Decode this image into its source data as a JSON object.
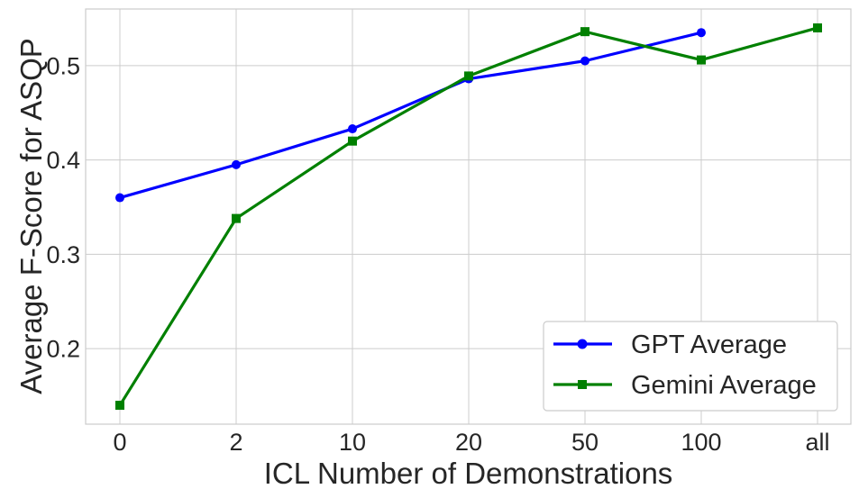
{
  "chart_data": {
    "type": "line",
    "categories": [
      "0",
      "2",
      "10",
      "20",
      "50",
      "100",
      "all"
    ],
    "series": [
      {
        "name": "GPT Average",
        "color": "#0000ff",
        "marker": "circle",
        "values": [
          0.36,
          0.395,
          0.433,
          0.486,
          0.505,
          0.535,
          null
        ]
      },
      {
        "name": "Gemini Average",
        "color": "#008000",
        "marker": "square",
        "values": [
          0.14,
          0.338,
          0.42,
          0.489,
          0.536,
          0.506,
          0.54
        ]
      }
    ],
    "xlabel": "ICL Number of Demonstrations",
    "ylabel": "Average F-Score for ASQP",
    "ylim": [
      0.12,
      0.56
    ],
    "yticks": [
      "0.2",
      "0.3",
      "0.4",
      "0.5"
    ],
    "grid": true,
    "legend_position": "bottom-right"
  }
}
